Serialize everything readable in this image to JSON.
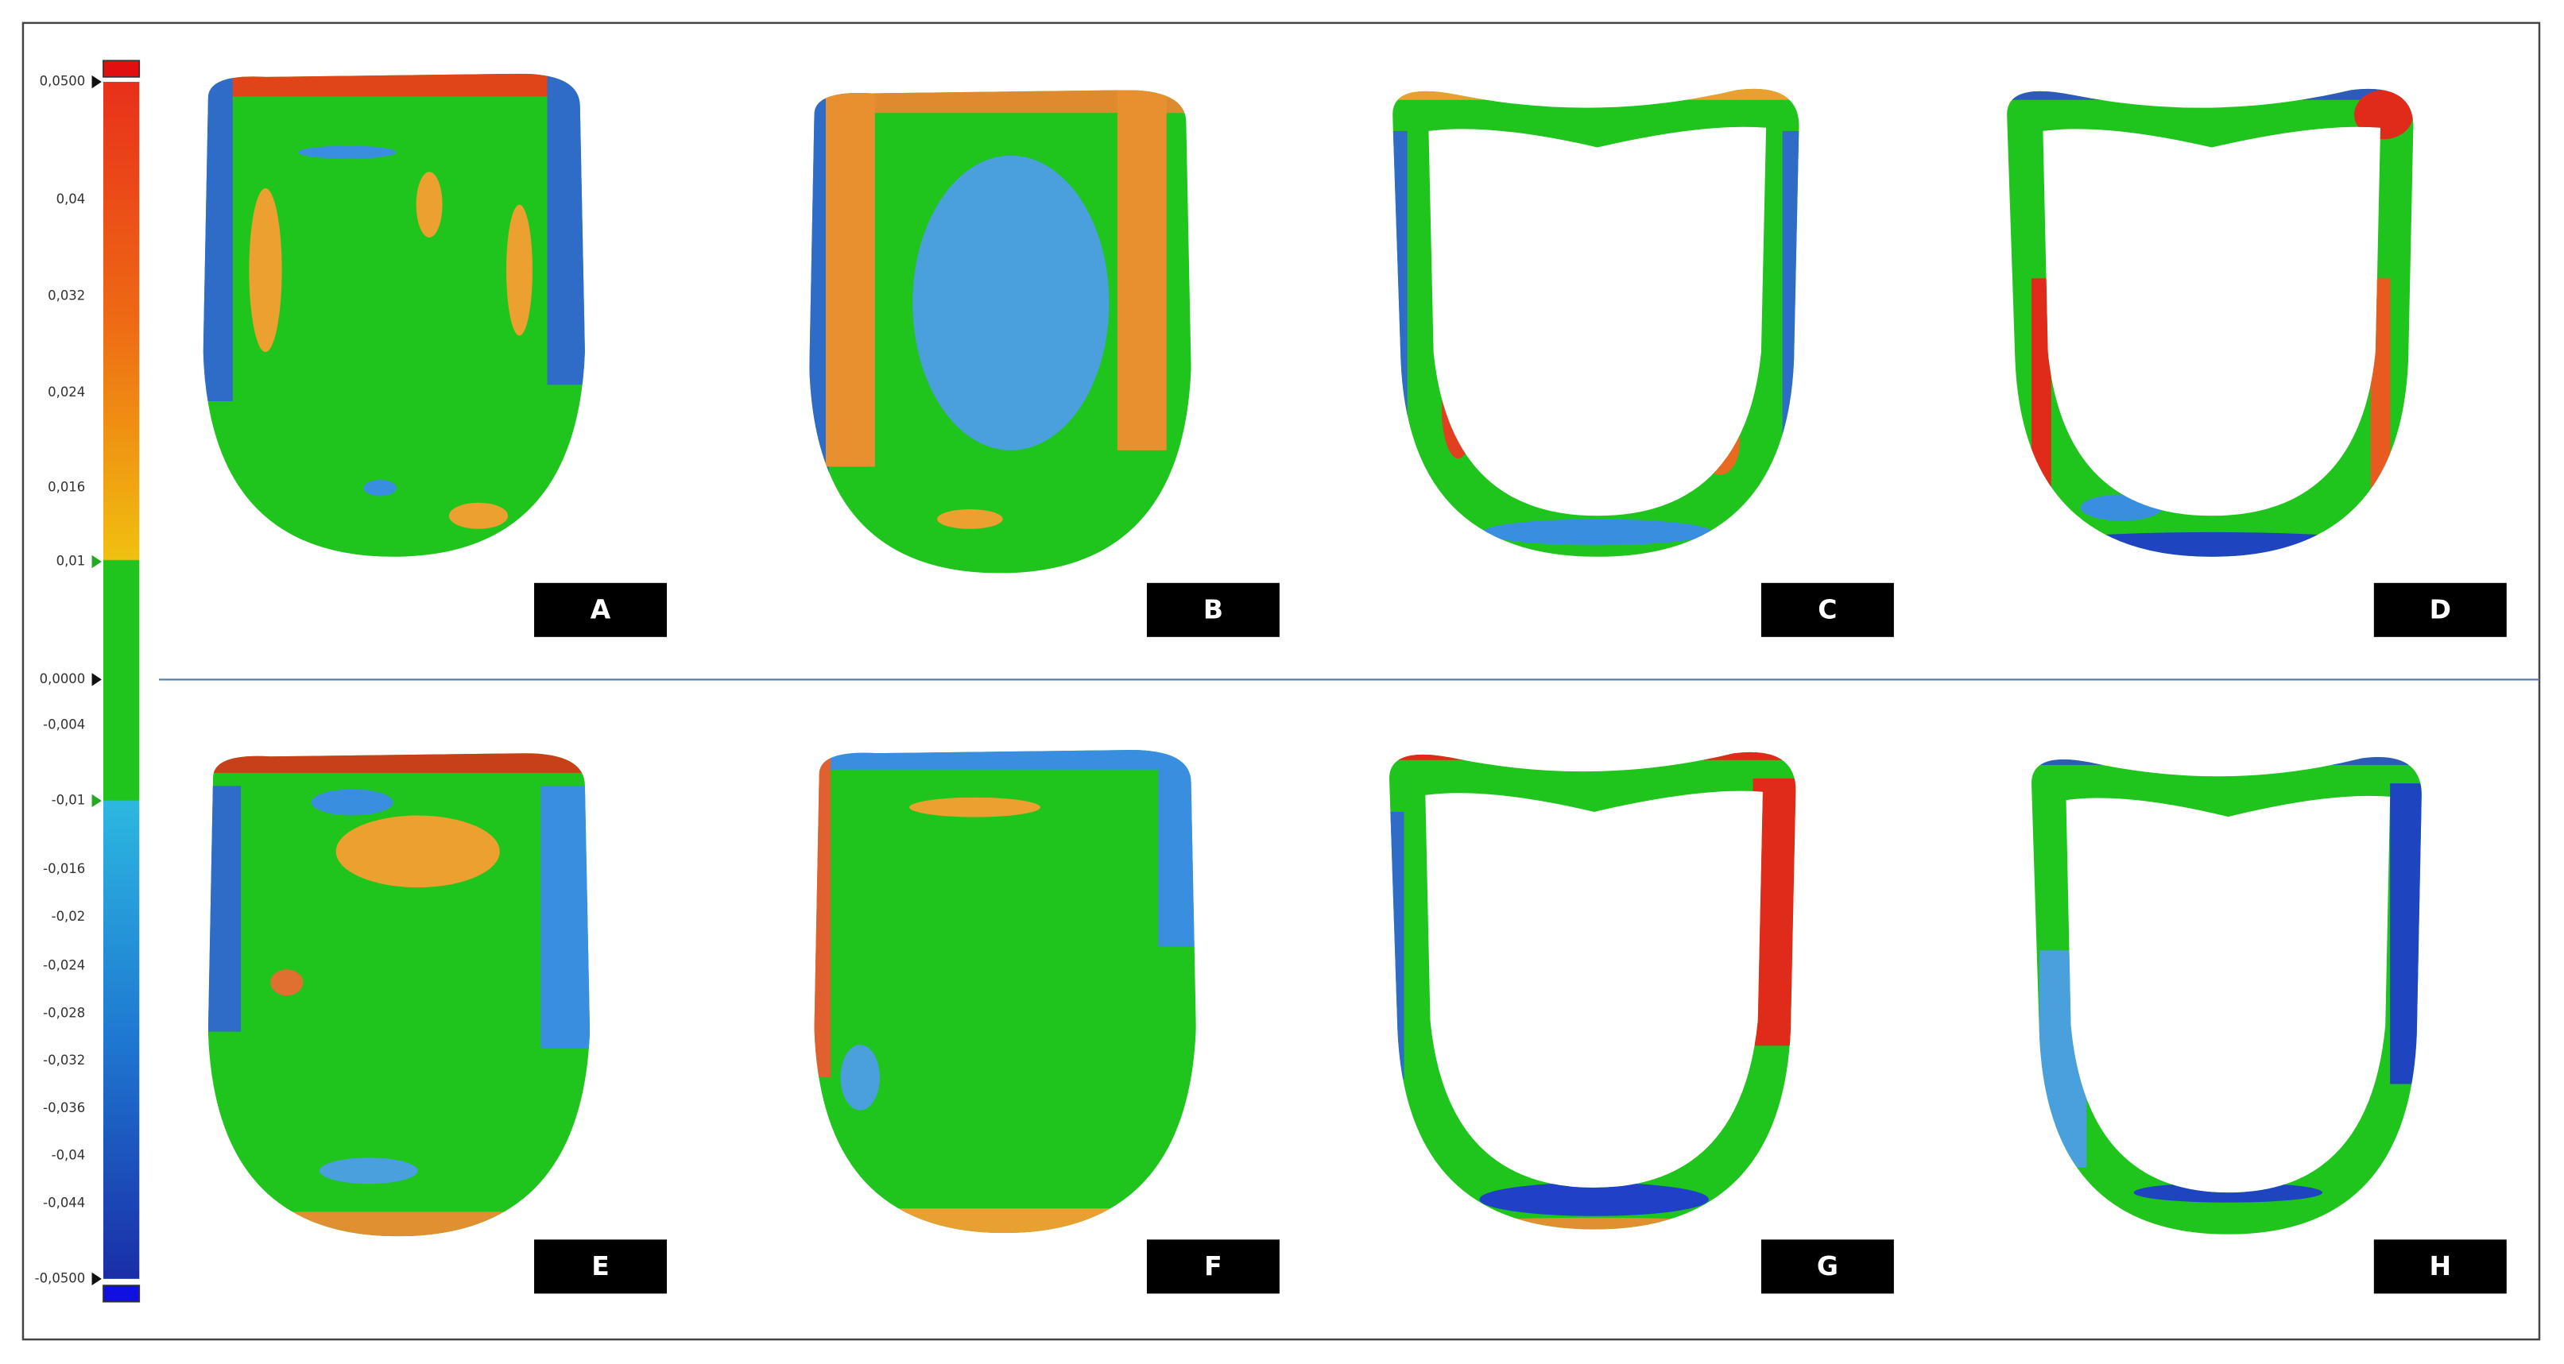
{
  "color_scale": {
    "labels": [
      "0,0500",
      "0,04",
      "0,032",
      "0,024",
      "0,016",
      "0,01",
      "0,0000",
      "-0,004",
      "-0,01",
      "-0,016",
      "-0,02",
      "-0,024",
      "-0,028",
      "-0,032",
      "-0,036",
      "-0,04",
      "-0,044",
      "-0,0500"
    ]
  },
  "panels": [
    "A",
    "B",
    "C",
    "D",
    "E",
    "F",
    "G",
    "H"
  ]
}
